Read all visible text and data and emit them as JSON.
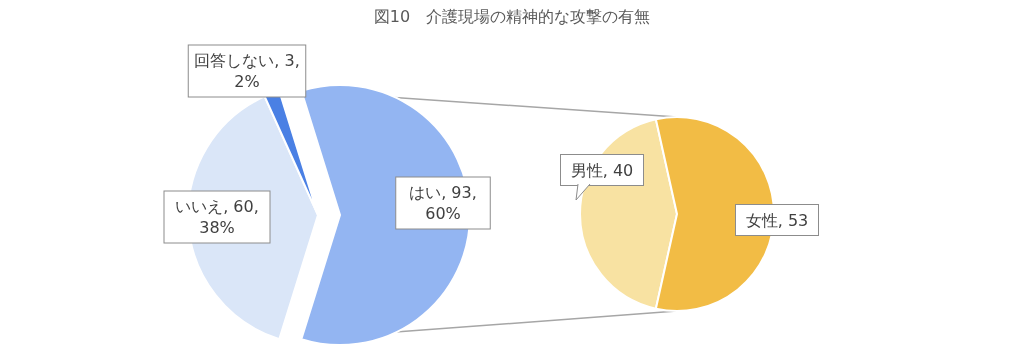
{
  "chart_data": [
    {
      "type": "pie",
      "title": "図10　介護現場の精神的な攻撃の有無",
      "categories": [
        "はい",
        "いいえ",
        "回答しない"
      ],
      "values": [
        93,
        60,
        3
      ],
      "colors": [
        "#93b5f2",
        "#dae6f8",
        "#4a80e4"
      ],
      "value_labels": [
        "93, 60%",
        "60, 38%",
        "3, 2%"
      ]
    },
    {
      "type": "pie",
      "categories": [
        "男性",
        "女性"
      ],
      "values": [
        40,
        53
      ],
      "colors": [
        "#f8e2a2",
        "#f2bc45"
      ],
      "value_labels": [
        "40",
        "53"
      ]
    }
  ]
}
